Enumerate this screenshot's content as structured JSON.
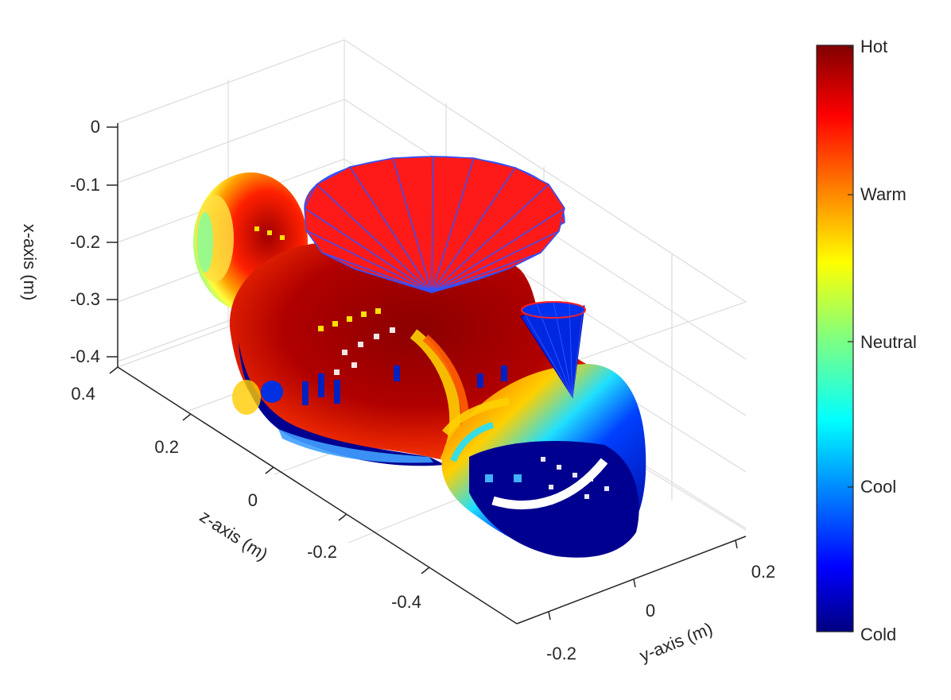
{
  "chart_data": {
    "type": "3d-scatter",
    "title": "",
    "axes": {
      "x": {
        "label": "x-axis (m)",
        "ticks": [
          "0",
          "-0.1",
          "-0.2",
          "-0.3",
          "-0.4"
        ],
        "lim": [
          -0.45,
          0
        ]
      },
      "y": {
        "label": "y-axis (m)",
        "ticks": [
          "-0.2",
          "0",
          "0.2"
        ],
        "lim": [
          -0.25,
          0.25
        ]
      },
      "z": {
        "label": "z-axis (m)",
        "ticks": [
          "0.4",
          "0.2",
          "0",
          "-0.2",
          "-0.4"
        ],
        "lim": [
          -0.5,
          0.45
        ]
      }
    },
    "grid": true,
    "colormap": "jet",
    "colorbar": {
      "labels": [
        "Hot",
        "Warm",
        "Neutral",
        "Cool",
        "Cold"
      ],
      "colors": {
        "hot": "#800000",
        "warm": "#ff6600",
        "neutral": "#a0ff60",
        "cool": "#0080ff",
        "cold": "#000090"
      }
    },
    "objects": [
      {
        "name": "large-cone",
        "color": "#ff1a1a",
        "edge": "#4060ff"
      },
      {
        "name": "small-cone",
        "color": "#0020e0",
        "edge": "#ff2020"
      }
    ]
  }
}
